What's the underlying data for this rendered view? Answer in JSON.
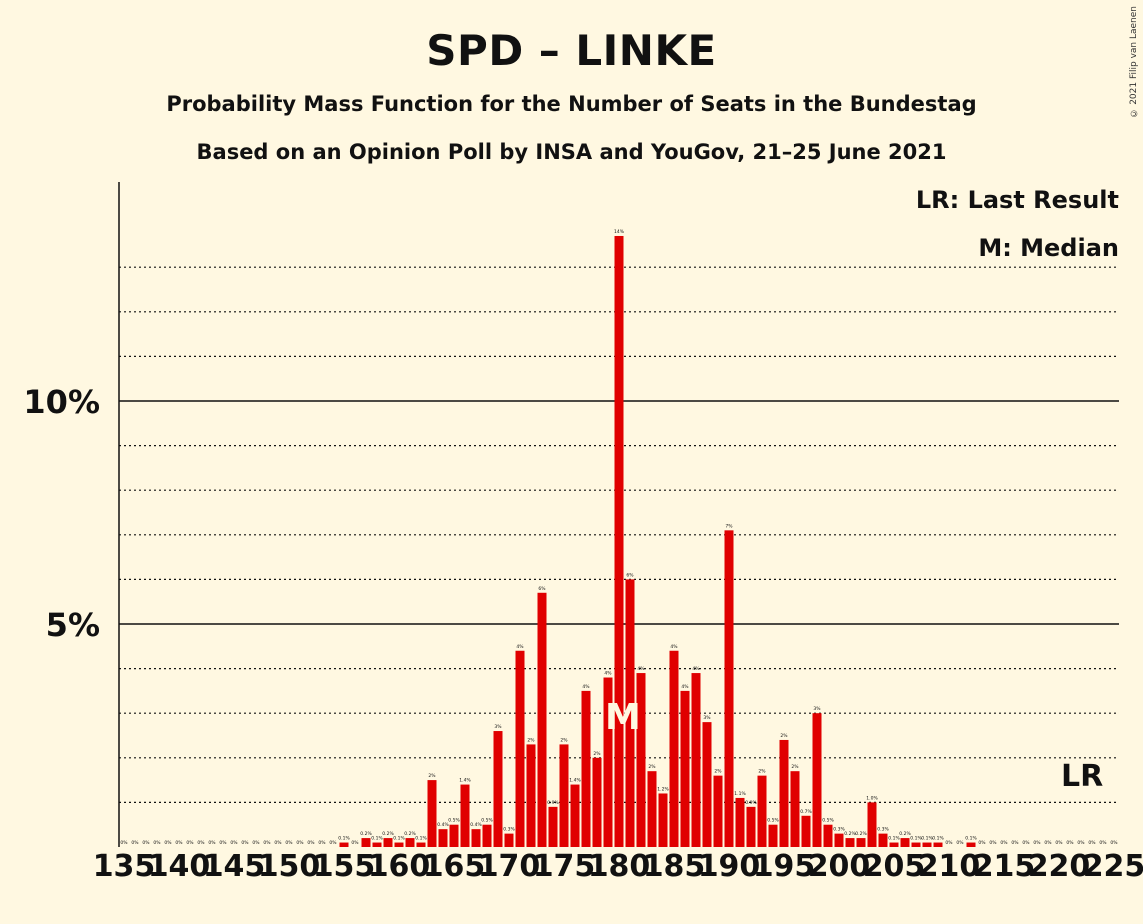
{
  "title": "SPD – LINKE",
  "subtitle1": "Probability Mass Function for the Number of Seats in the Bundestag",
  "subtitle2": "Based on an Opinion Poll by INSA and YouGov, 21–25 June 2021",
  "copyright": "© 2021 Filip van Laenen",
  "legend": {
    "last_result": "LR: Last Result",
    "median": "M: Median"
  },
  "markers": {
    "last_result_label": "LR",
    "median_label": "M"
  },
  "colors": {
    "background": "#FFF8E1",
    "bar": "#E00000"
  },
  "chart_data": {
    "type": "bar",
    "xlabel": "",
    "ylabel": "",
    "ylim": [
      0,
      14.5
    ],
    "y_tick_labels": [
      "5%",
      "10%"
    ],
    "y_ticks": [
      5,
      10
    ],
    "x_tick_labels": [
      "135",
      "140",
      "145",
      "150",
      "155",
      "160",
      "165",
      "170",
      "175",
      "180",
      "185",
      "190",
      "195",
      "200",
      "205",
      "210",
      "215",
      "220",
      "225"
    ],
    "x": [
      135,
      136,
      137,
      138,
      139,
      140,
      141,
      142,
      143,
      144,
      145,
      146,
      147,
      148,
      149,
      150,
      151,
      152,
      153,
      154,
      155,
      156,
      157,
      158,
      159,
      160,
      161,
      162,
      163,
      164,
      165,
      166,
      167,
      168,
      169,
      170,
      171,
      172,
      173,
      174,
      175,
      176,
      177,
      178,
      179,
      180,
      181,
      182,
      183,
      184,
      185,
      186,
      187,
      188,
      189,
      190,
      191,
      192,
      193,
      194,
      195,
      196,
      197,
      198,
      199,
      200,
      201,
      202,
      203,
      204,
      205,
      206,
      207,
      208,
      209,
      210,
      211,
      212,
      213,
      214,
      215,
      216,
      217,
      218,
      219,
      220,
      221,
      222,
      223,
      224,
      225
    ],
    "values": [
      0,
      0,
      0,
      0,
      0,
      0,
      0,
      0,
      0,
      0,
      0,
      0,
      0,
      0,
      0,
      0,
      0,
      0,
      0,
      0,
      0.1,
      0,
      0.2,
      0.1,
      0.2,
      0.1,
      0.2,
      0.1,
      1.5,
      0.4,
      0.5,
      1.4,
      0.4,
      0.5,
      2.6,
      0.3,
      4.4,
      2.3,
      5.7,
      0.9,
      2.3,
      1.4,
      3.5,
      2.0,
      3.8,
      13.7,
      6.0,
      3.9,
      1.7,
      1.2,
      4.4,
      3.5,
      3.9,
      2.8,
      1.6,
      7.1,
      1.1,
      0.9,
      1.6,
      0.5,
      2.4,
      1.7,
      0.7,
      3.0,
      0.5,
      0.3,
      0.2,
      0.2,
      1.0,
      0.3,
      0.1,
      0.2,
      0.1,
      0.1,
      0.1,
      0,
      0,
      0.1,
      0,
      0,
      0,
      0,
      0,
      0,
      0,
      0,
      0,
      0,
      0,
      0,
      0
    ],
    "value_labels": [
      "0%",
      "0%",
      "0%",
      "0%",
      "0%",
      "0%",
      "0%",
      "0%",
      "0%",
      "0%",
      "0%",
      "0%",
      "0%",
      "0%",
      "0%",
      "0%",
      "0%",
      "0%",
      "0%",
      "0%",
      "0.1%",
      "0%",
      "0.2%",
      "0.1%",
      "0.2%",
      "0.1%",
      "0.2%",
      "0.1%",
      "2%",
      "0.4%",
      "0.5%",
      "1.4%",
      "0.4%",
      "0.5%",
      "3%",
      "0.3%",
      "4%",
      "2%",
      "6%",
      "0.9%",
      "2%",
      "1.4%",
      "4%",
      "2%",
      "4%",
      "14%",
      "6%",
      "4%",
      "2%",
      "1.2%",
      "4%",
      "4%",
      "4%",
      "3%",
      "2%",
      "7%",
      "1.1%",
      "0.9%",
      "2%",
      "0.5%",
      "2%",
      "2%",
      "0.7%",
      "3%",
      "0.5%",
      "0.3%",
      "0.2%",
      "0.2%",
      "1.0%",
      "0.3%",
      "0.1%",
      "0.2%",
      "0.1%",
      "0.1%",
      "0.1%",
      "0%",
      "0%",
      "0.1%",
      "0%",
      "0%",
      "0%",
      "0%",
      "0%",
      "0%",
      "0%",
      "0%",
      "0%",
      "0%",
      "0%",
      "0%",
      "0%"
    ],
    "median_seat": 180,
    "last_result_seat": 222,
    "grid": true
  }
}
